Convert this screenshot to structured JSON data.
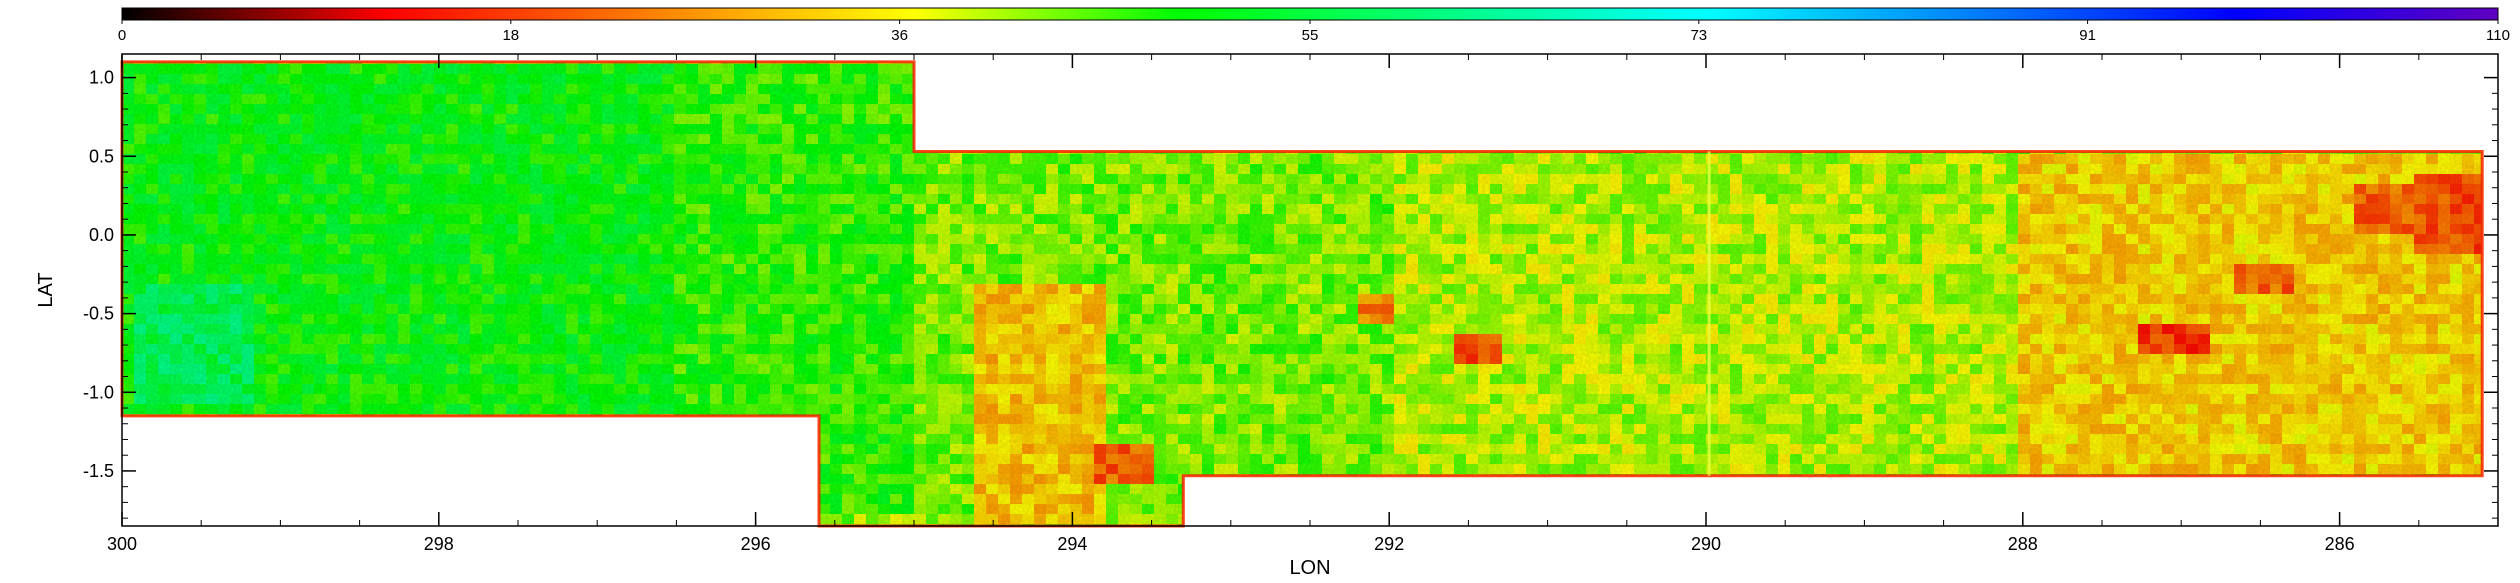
{
  "chart_data": {
    "type": "heatmap",
    "xlabel": "LON",
    "ylabel": "LAT",
    "xlim": [
      300,
      285
    ],
    "ylim": [
      -1.85,
      1.15
    ],
    "x_ticks": [
      300,
      298,
      296,
      294,
      292,
      290,
      288,
      286
    ],
    "y_ticks": [
      1.0,
      0.5,
      0.0,
      -0.5,
      -1.0,
      -1.5
    ],
    "y_tick_labels": [
      "1.0",
      "0.5",
      "0.0",
      "-0.5",
      "-1.0",
      "-1.5"
    ],
    "colorbar": {
      "min": 0,
      "max": 110,
      "ticks": [
        0,
        18,
        36,
        55,
        73,
        91,
        110
      ],
      "colormap": "rainbow-red-to-violet",
      "stops": [
        "#000000",
        "#ff0000",
        "#ff8000",
        "#ffff00",
        "#00ff00",
        "#00ff80",
        "#00ffff",
        "#0080ff",
        "#0000ff",
        "#6000c0"
      ]
    },
    "coverage": {
      "description_regions": [
        {
          "lon": [
            300,
            295.0
          ],
          "lat_top": 1.1,
          "lat_bottom_west": -1.15,
          "lat_bottom_east_from": 295.6,
          "lat_bottom_east": -1.85
        },
        {
          "lon": [
            295.0,
            285.1
          ],
          "lat_top": 0.53,
          "lat_bottom_west": -1.85,
          "lat_bottom_step_lon": 293.3,
          "lat_bottom_east": -1.53
        }
      ]
    },
    "value_patches": [
      {
        "lon": [
          300,
          296.5
        ],
        "lat": [
          -1.15,
          1.1
        ],
        "value": 50
      },
      {
        "lon": [
          299.9,
          299.2
        ],
        "lat": [
          -1.1,
          -0.3
        ],
        "value": 57
      },
      {
        "lon": [
          296.5,
          295.0
        ],
        "lat": [
          -1.8,
          1.1
        ],
        "value": 47
      },
      {
        "lon": [
          295.0,
          292.0
        ],
        "lat": [
          -1.85,
          0.53
        ],
        "value": 43
      },
      {
        "lon": [
          294.6,
          293.8
        ],
        "lat": [
          -1.85,
          -0.3
        ],
        "value": 32
      },
      {
        "lon": [
          293.9,
          293.5
        ],
        "lat": [
          -1.6,
          -1.3
        ],
        "value": 22
      },
      {
        "lon": [
          292.0,
          290.0
        ],
        "lat": [
          -1.53,
          0.53
        ],
        "value": 40
      },
      {
        "lon": [
          291.6,
          291.3
        ],
        "lat": [
          -0.8,
          -0.6
        ],
        "value": 20
      },
      {
        "lon": [
          292.2,
          292.0
        ],
        "lat": [
          -0.55,
          -0.35
        ],
        "value": 25
      },
      {
        "lon": [
          290.0,
          288.0
        ],
        "lat": [
          -1.53,
          0.53
        ],
        "value": 40
      },
      {
        "lon": [
          288.0,
          285.1
        ],
        "lat": [
          -1.53,
          0.53
        ],
        "value": 33
      },
      {
        "lon": [
          287.3,
          286.8
        ],
        "lat": [
          -0.75,
          -0.55
        ],
        "value": 18
      },
      {
        "lon": [
          286.7,
          286.3
        ],
        "lat": [
          -0.4,
          -0.2
        ],
        "value": 22
      },
      {
        "lon": [
          285.9,
          285.5
        ],
        "lat": [
          0.0,
          0.3
        ],
        "value": 22
      },
      {
        "lon": [
          285.5,
          285.1
        ],
        "lat": [
          -0.1,
          0.4
        ],
        "value": 20
      }
    ]
  }
}
